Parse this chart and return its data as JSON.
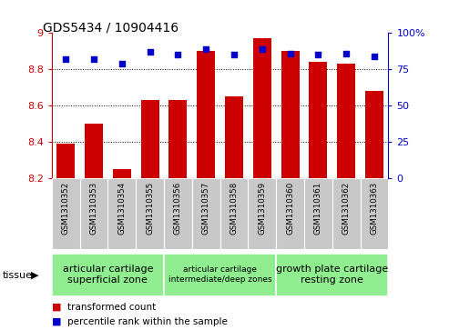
{
  "title": "GDS5434 / 10904416",
  "samples": [
    "GSM1310352",
    "GSM1310353",
    "GSM1310354",
    "GSM1310355",
    "GSM1310356",
    "GSM1310357",
    "GSM1310358",
    "GSM1310359",
    "GSM1310360",
    "GSM1310361",
    "GSM1310362",
    "GSM1310363"
  ],
  "red_values": [
    8.39,
    8.5,
    8.25,
    8.63,
    8.63,
    8.9,
    8.65,
    8.97,
    8.9,
    8.84,
    8.83,
    8.68
  ],
  "blue_values": [
    82,
    82,
    79,
    87,
    85,
    89,
    85,
    89,
    86,
    85,
    86,
    84
  ],
  "ymin": 8.2,
  "ymax": 9.0,
  "yticks": [
    8.2,
    8.4,
    8.6,
    8.8,
    9.0
  ],
  "ytick_labels": [
    "8.2",
    "8.4",
    "8.6",
    "8.8",
    "9"
  ],
  "right_yticks": [
    0,
    25,
    50,
    75,
    100
  ],
  "right_yticklabels": [
    "0",
    "25",
    "50",
    "75",
    "100%"
  ],
  "grid_yticks": [
    8.4,
    8.6,
    8.8
  ],
  "bar_color": "#cc0000",
  "dot_color": "#0000cc",
  "tick_area_bg": "#c8c8c8",
  "tissue_color": "#90ee90",
  "left_axis_color": "#cc0000",
  "right_axis_color": "#0000cc",
  "group_configs": [
    {
      "start": 0,
      "end": 4,
      "label": "articular cartilage\nsuperficial zone",
      "fontsize": 8
    },
    {
      "start": 4,
      "end": 8,
      "label": "articular cartilage\nintermediate/deep zones",
      "fontsize": 6.5
    },
    {
      "start": 8,
      "end": 12,
      "label": "growth plate cartilage\nresting zone",
      "fontsize": 8
    }
  ],
  "legend_items": [
    {
      "label": "transformed count",
      "color": "#cc0000"
    },
    {
      "label": "percentile rank within the sample",
      "color": "#0000cc"
    }
  ]
}
